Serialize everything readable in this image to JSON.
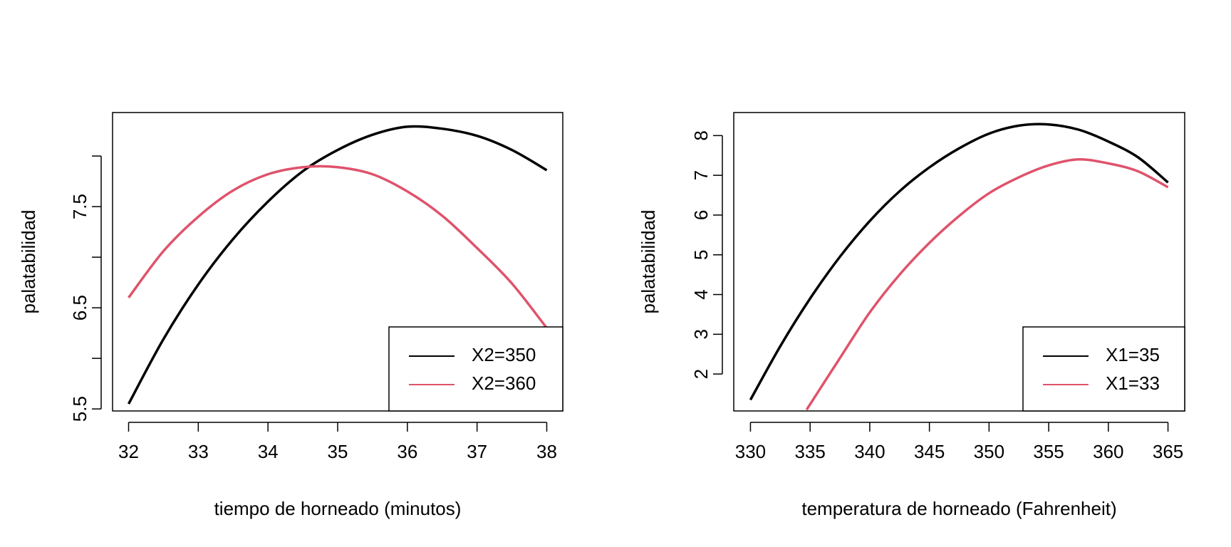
{
  "chart_data": [
    {
      "type": "line",
      "xlabel": "tiempo de horneado (minutos)",
      "ylabel": "palatabilidad",
      "xlim": [
        31.77,
        38.23
      ],
      "ylim": [
        5.48,
        8.43
      ],
      "xticks": [
        32,
        33,
        34,
        35,
        36,
        37,
        38
      ],
      "yticks": [
        5.5,
        6.0,
        6.5,
        7.0,
        7.5,
        8.0
      ],
      "ytick_labels": [
        "5.5",
        "",
        "6.5",
        "",
        "7.5",
        ""
      ],
      "legend": "bottom-right",
      "grid": false,
      "series": [
        {
          "name": "X2=350",
          "color": "#000000",
          "x": [
            32,
            32.5,
            33,
            33.5,
            34,
            34.5,
            35,
            35.5,
            36,
            36.5,
            37,
            37.5,
            38
          ],
          "y": [
            5.55,
            6.19,
            6.73,
            7.18,
            7.55,
            7.85,
            8.06,
            8.21,
            8.29,
            8.27,
            8.2,
            8.06,
            7.86
          ]
        },
        {
          "name": "X2=360",
          "color": "#DF536B",
          "x": [
            32,
            32.5,
            33,
            33.5,
            34,
            34.5,
            35,
            35.5,
            36,
            36.5,
            37,
            37.5,
            38
          ],
          "y": [
            6.6,
            7.06,
            7.4,
            7.66,
            7.82,
            7.89,
            7.89,
            7.82,
            7.65,
            7.41,
            7.09,
            6.74,
            6.3
          ]
        }
      ]
    },
    {
      "type": "line",
      "xlabel": "temperatura de horneado (Fahrenheit)",
      "ylabel": "palatabilidad",
      "xlim": [
        328.6,
        366.4
      ],
      "ylim": [
        1.07,
        8.58
      ],
      "xticks": [
        330,
        335,
        340,
        345,
        350,
        355,
        360,
        365
      ],
      "yticks": [
        2,
        3,
        4,
        5,
        6,
        7,
        8
      ],
      "ytick_labels": [
        "2",
        "3",
        "4",
        "5",
        "6",
        "7",
        "8"
      ],
      "legend": "bottom-right",
      "grid": false,
      "series": [
        {
          "name": "X1=35",
          "color": "#000000",
          "x": [
            330,
            332.5,
            335,
            337.5,
            340,
            342.5,
            345,
            347.5,
            350,
            352.5,
            355,
            357.5,
            360,
            362.5,
            365
          ],
          "y": [
            1.35,
            2.7,
            3.9,
            4.95,
            5.85,
            6.6,
            7.2,
            7.68,
            8.05,
            8.25,
            8.28,
            8.15,
            7.85,
            7.45,
            6.82
          ]
        },
        {
          "name": "X1=33",
          "color": "#DF536B",
          "x": [
            334.7,
            337.5,
            340,
            342.5,
            345,
            347.5,
            350,
            352.5,
            355,
            357.5,
            360,
            362.5,
            365
          ],
          "y": [
            1.1,
            2.4,
            3.55,
            4.5,
            5.3,
            5.98,
            6.55,
            6.95,
            7.25,
            7.4,
            7.3,
            7.1,
            6.7
          ]
        }
      ]
    }
  ]
}
